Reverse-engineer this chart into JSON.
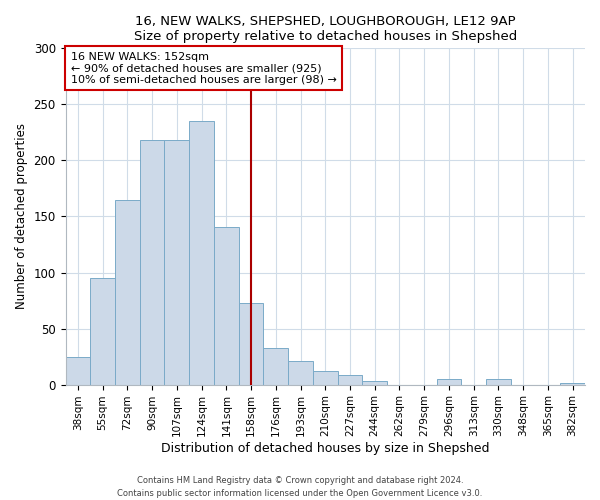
{
  "title1": "16, NEW WALKS, SHEPSHED, LOUGHBOROUGH, LE12 9AP",
  "title2": "Size of property relative to detached houses in Shepshed",
  "xlabel": "Distribution of detached houses by size in Shepshed",
  "ylabel": "Number of detached properties",
  "bar_labels": [
    "38sqm",
    "55sqm",
    "72sqm",
    "90sqm",
    "107sqm",
    "124sqm",
    "141sqm",
    "158sqm",
    "176sqm",
    "193sqm",
    "210sqm",
    "227sqm",
    "244sqm",
    "262sqm",
    "279sqm",
    "296sqm",
    "313sqm",
    "330sqm",
    "348sqm",
    "365sqm",
    "382sqm"
  ],
  "bar_values": [
    25,
    95,
    165,
    218,
    218,
    235,
    141,
    73,
    33,
    21,
    12,
    9,
    3,
    0,
    0,
    5,
    0,
    5,
    0,
    0,
    1
  ],
  "bar_color": "#ccd9e8",
  "bar_edge_color": "#7aaac8",
  "vline_x_index": 7,
  "vline_color": "#aa0000",
  "annotation_line1": "16 NEW WALKS: 152sqm",
  "annotation_line2": "← 90% of detached houses are smaller (925)",
  "annotation_line3": "10% of semi-detached houses are larger (98) →",
  "ylim": [
    0,
    300
  ],
  "yticks": [
    0,
    50,
    100,
    150,
    200,
    250,
    300
  ],
  "grid_color": "#d0dce8",
  "footnote1": "Contains HM Land Registry data © Crown copyright and database right 2024.",
  "footnote2": "Contains public sector information licensed under the Open Government Licence v3.0."
}
